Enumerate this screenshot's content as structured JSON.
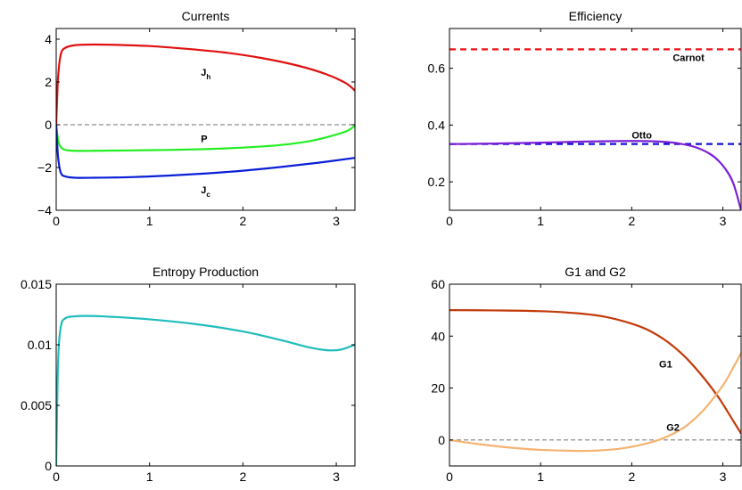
{
  "chart_data": [
    {
      "type": "line",
      "title": "Currents",
      "xlabel": "",
      "ylabel": "",
      "xlim": [
        0,
        3.2
      ],
      "ylim": [
        -4,
        4.5
      ],
      "xticks": [
        "0",
        "1",
        "2",
        "3"
      ],
      "xtick_values": [
        0,
        1,
        2,
        3
      ],
      "yticks": [
        "−4",
        "−2",
        "0",
        "2",
        "4"
      ],
      "ytick_values": [
        -4,
        -2,
        0,
        2,
        4
      ],
      "zero_line": true,
      "series": [
        {
          "color": "#e01010",
          "x": [
            0,
            0.02,
            0.05,
            0.1,
            0.2,
            0.4,
            0.6,
            1.0,
            1.4,
            1.8,
            2.2,
            2.6,
            2.9,
            3.1,
            3.2
          ],
          "y": [
            0,
            2.2,
            3.3,
            3.6,
            3.72,
            3.75,
            3.74,
            3.68,
            3.55,
            3.38,
            3.12,
            2.75,
            2.35,
            1.95,
            1.6
          ]
        },
        {
          "color": "#22ee22",
          "x": [
            0,
            0.02,
            0.05,
            0.1,
            0.2,
            0.4,
            0.8,
            1.2,
            1.6,
            2.0,
            2.4,
            2.7,
            2.9,
            3.1,
            3.2
          ],
          "y": [
            0,
            -0.7,
            -1.05,
            -1.18,
            -1.22,
            -1.22,
            -1.2,
            -1.18,
            -1.14,
            -1.07,
            -0.95,
            -0.78,
            -0.58,
            -0.32,
            -0.05
          ]
        },
        {
          "color": "#0a1ed8",
          "x": [
            0,
            0.02,
            0.05,
            0.1,
            0.2,
            0.4,
            0.8,
            1.2,
            1.6,
            2.0,
            2.4,
            2.8,
            3.2
          ],
          "y": [
            0,
            -1.5,
            -2.25,
            -2.42,
            -2.48,
            -2.48,
            -2.45,
            -2.38,
            -2.28,
            -2.15,
            -1.98,
            -1.78,
            -1.55
          ]
        }
      ],
      "annotations": [
        {
          "text": "J",
          "sub": "h",
          "x": 1.55,
          "y": 2.3
        },
        {
          "text": "P",
          "sub": "",
          "x": 1.55,
          "y": -0.82
        },
        {
          "text": "J",
          "sub": "c",
          "x": 1.55,
          "y": -3.2
        }
      ]
    },
    {
      "type": "line",
      "title": "Efficiency",
      "xlabel": "",
      "ylabel": "",
      "xlim": [
        0,
        3.2
      ],
      "ylim": [
        0.1,
        0.74
      ],
      "xticks": [
        "0",
        "1",
        "2",
        "3"
      ],
      "xtick_values": [
        0,
        1,
        2,
        3
      ],
      "yticks": [
        "0.2",
        "0.4",
        "0.6"
      ],
      "ytick_values": [
        0.2,
        0.4,
        0.6
      ],
      "series": [
        {
          "color": "#ee1111",
          "dashed": true,
          "x": [
            0,
            3.2
          ],
          "y": [
            0.6667,
            0.6667
          ]
        },
        {
          "color": "#1111cc",
          "dashed": true,
          "x": [
            0,
            3.2
          ],
          "y": [
            0.3333,
            0.3333
          ]
        },
        {
          "color": "#7a1fd8",
          "x": [
            0,
            0.5,
            1.0,
            1.5,
            2.0,
            2.3,
            2.5,
            2.7,
            2.85,
            2.95,
            3.05,
            3.12,
            3.2
          ],
          "y": [
            0.333,
            0.335,
            0.338,
            0.342,
            0.344,
            0.342,
            0.336,
            0.322,
            0.3,
            0.275,
            0.235,
            0.19,
            0.1
          ]
        }
      ],
      "annotations": [
        {
          "text": "Carnot",
          "x": 2.45,
          "y": 0.625
        },
        {
          "text": "Otto",
          "x": 2.0,
          "y": 0.352
        }
      ]
    },
    {
      "type": "line",
      "title": "Entropy Production",
      "xlabel": "",
      "ylabel": "",
      "xlim": [
        0,
        3.2
      ],
      "ylim": [
        0,
        0.015
      ],
      "xticks": [
        "0",
        "1",
        "2",
        "3"
      ],
      "xtick_values": [
        0,
        1,
        2,
        3
      ],
      "yticks": [
        "0",
        "0.005",
        "0.01",
        "0.015"
      ],
      "ytick_values": [
        0,
        0.005,
        0.01,
        0.015
      ],
      "series": [
        {
          "color": "#1fbcbc",
          "x": [
            0,
            0.02,
            0.05,
            0.1,
            0.2,
            0.3,
            0.5,
            1.0,
            1.5,
            2.0,
            2.4,
            2.7,
            2.9,
            3.05,
            3.2
          ],
          "y": [
            0,
            0.0085,
            0.0115,
            0.0122,
            0.01235,
            0.01238,
            0.01235,
            0.0121,
            0.0117,
            0.0111,
            0.0104,
            0.0098,
            0.00955,
            0.0096,
            0.01
          ]
        }
      ]
    },
    {
      "type": "line",
      "title": "G1 and G2",
      "xlabel": "",
      "ylabel": "",
      "xlim": [
        0,
        3.2
      ],
      "ylim": [
        -10,
        60
      ],
      "xticks": [
        "0",
        "1",
        "2",
        "3"
      ],
      "xtick_values": [
        0,
        1,
        2,
        3
      ],
      "yticks": [
        "0",
        "20",
        "40",
        "60"
      ],
      "ytick_values": [
        0,
        20,
        40,
        60
      ],
      "zero_line": true,
      "series": [
        {
          "color": "#c43a0a",
          "x": [
            0,
            0.5,
            1.0,
            1.4,
            1.7,
            2.0,
            2.2,
            2.4,
            2.6,
            2.8,
            2.95,
            3.05,
            3.12,
            3.2
          ],
          "y": [
            50,
            49.9,
            49.6,
            48.8,
            47.5,
            44.8,
            42,
            37.6,
            31.5,
            23.5,
            16.5,
            11,
            7,
            2.5
          ]
        },
        {
          "color": "#f5b270",
          "x": [
            0,
            0.3,
            0.6,
            1.0,
            1.4,
            1.6,
            1.9,
            2.2,
            2.4,
            2.6,
            2.8,
            3.0,
            3.1,
            3.2
          ],
          "y": [
            0,
            -1.5,
            -2.7,
            -3.8,
            -4.2,
            -4.1,
            -3.2,
            -1,
            1.5,
            5.5,
            12,
            21,
            27,
            33.5
          ]
        }
      ],
      "annotations": [
        {
          "text": "G1",
          "x": 2.3,
          "y": 28
        },
        {
          "text": "G2",
          "x": 2.38,
          "y": 3.5
        }
      ]
    }
  ]
}
